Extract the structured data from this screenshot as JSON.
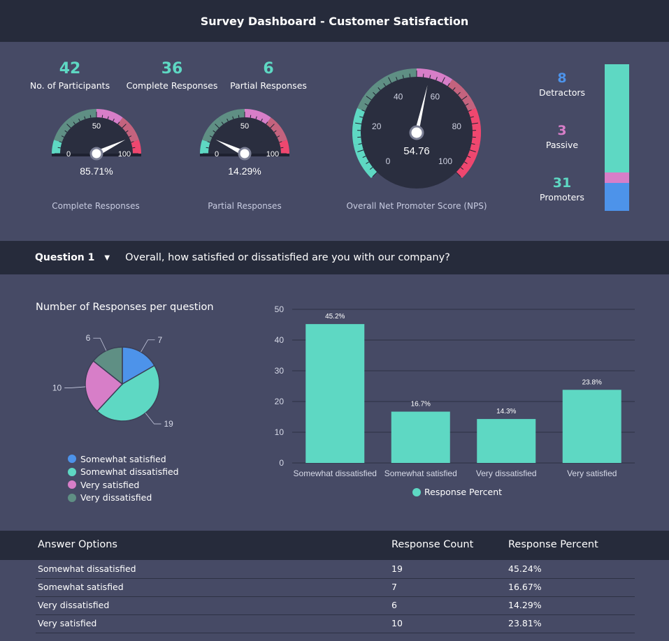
{
  "title": "Survey Dashboard - Customer Satisfaction",
  "colors": {
    "accent": "#5ed8c3",
    "pink": "#d77ec8",
    "blue": "#4d93ea",
    "teal_dark": "#5f8f84",
    "red": "#ef476f",
    "header_bg": "#262b3b",
    "panel_bg": "#464a65"
  },
  "kpis": [
    {
      "value": "42",
      "label": "No. of Participants"
    },
    {
      "value": "36",
      "label": "Complete Responses"
    },
    {
      "value": "6",
      "label": "Partial Responses"
    }
  ],
  "gauges": {
    "complete": {
      "value": 85.71,
      "value_text": "85.71%",
      "ticks": [
        "0",
        "50",
        "100"
      ],
      "caption": "Complete Responses"
    },
    "partial": {
      "value": 14.29,
      "value_text": "14.29%",
      "ticks": [
        "0",
        "50",
        "100"
      ],
      "caption": "Partial Responses"
    },
    "nps": {
      "value": 54.76,
      "value_text": "54.76",
      "ticks": [
        "0",
        "20",
        "40",
        "60",
        "80",
        "100"
      ],
      "caption": "Overall Net Promoter Score (NPS)"
    }
  },
  "nps_breakdown": {
    "detractors": {
      "value": 8,
      "value_text": "8",
      "label": "Detractors"
    },
    "passive": {
      "value": 3,
      "value_text": "3",
      "label": "Passive"
    },
    "promoters": {
      "value": 31,
      "value_text": "31",
      "label": "Promoters"
    }
  },
  "question": {
    "selector": "Question 1",
    "icon": "caret-down-icon",
    "text": "Overall, how satisfied or dissatisfied are you with our company?"
  },
  "chart_data": [
    {
      "type": "pie",
      "title": "Number of Responses per question",
      "slices": [
        {
          "name": "Somewhat satisfied",
          "value": 7,
          "label": "7",
          "color": "#4d93ea"
        },
        {
          "name": "Somewhat dissatisfied",
          "value": 19,
          "label": "19",
          "color": "#5ed8c3"
        },
        {
          "name": "Very satisfied",
          "value": 10,
          "label": "10",
          "color": "#d77ec8"
        },
        {
          "name": "Very dissatisfied",
          "value": 6,
          "label": "6",
          "color": "#5f8f84"
        }
      ],
      "legend_position": "bottom"
    },
    {
      "type": "bar",
      "categories": [
        "Somewhat dissatisfied",
        "Somewhat satisfied",
        "Very dissatisfied",
        "Very satisfied"
      ],
      "series": [
        {
          "name": "Response Percent",
          "values": [
            45.2,
            16.7,
            14.3,
            23.8
          ],
          "labels": [
            "45.2%",
            "16.7%",
            "14.3%",
            "23.8%"
          ],
          "color": "#5ed8c3"
        }
      ],
      "ylim": [
        0,
        50
      ],
      "yticks": [
        "0",
        "10",
        "20",
        "30",
        "40",
        "50"
      ],
      "grid": true,
      "legend_position": "bottom"
    }
  ],
  "table": {
    "headers": [
      "Answer Options",
      "Response Count",
      "Response Percent"
    ],
    "rows": [
      [
        "Somewhat dissatisfied",
        "19",
        "45.24%"
      ],
      [
        "Somewhat satisfied",
        "7",
        "16.67%"
      ],
      [
        "Very dissatisfied",
        "6",
        "14.29%"
      ],
      [
        "Very satisfied",
        "10",
        "23.81%"
      ]
    ]
  }
}
